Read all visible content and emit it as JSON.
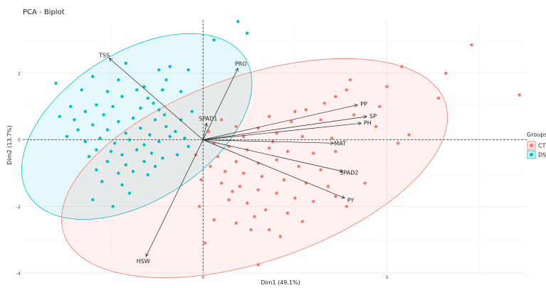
{
  "chart_data": {
    "type": "scatter",
    "title": "PCA - Biplot",
    "xlabel": "Dim1 (49.1%)",
    "ylabel": "Dim2 (13.7%)",
    "xlim": [
      -4.9,
      8.8
    ],
    "ylim": [
      -4.0,
      3.6
    ],
    "x_ticks": [
      0,
      5
    ],
    "y_ticks": [
      -4,
      -2,
      0,
      2
    ],
    "grid": true,
    "legend": {
      "title": "Groups",
      "position": "right",
      "items": [
        {
          "label": "CT",
          "color": "#F8766D"
        },
        {
          "label": "DS",
          "color": "#00BFC4"
        }
      ]
    },
    "ellipses": [
      {
        "group": "DS",
        "center": [
          -1.8,
          0.4
        ],
        "semi_major": 3.6,
        "semi_minor": 2.15,
        "angle_deg": 38,
        "color": "#00BFC4"
      },
      {
        "group": "CT",
        "center": [
          1.4,
          -0.85
        ],
        "semi_major": 5.55,
        "semi_minor": 2.75,
        "angle_deg": 22,
        "color": "#F8766D"
      }
    ],
    "variables": [
      {
        "name": "TSS",
        "x": -2.55,
        "y": 2.45
      },
      {
        "name": "PRO",
        "x": 0.95,
        "y": 2.15
      },
      {
        "name": "SPAD1",
        "x": 0.1,
        "y": 0.5
      },
      {
        "name": "PP",
        "x": 4.2,
        "y": 1.05
      },
      {
        "name": "SP",
        "x": 4.45,
        "y": 0.7
      },
      {
        "name": "PH",
        "x": 4.3,
        "y": 0.5
      },
      {
        "name": "MAT",
        "x": 3.55,
        "y": -0.1
      },
      {
        "name": "SPAD2",
        "x": 3.8,
        "y": -0.95
      },
      {
        "name": "PY",
        "x": 3.85,
        "y": -1.75
      },
      {
        "name": "HSW",
        "x": -1.55,
        "y": -3.5
      }
    ],
    "series": [
      {
        "name": "DS",
        "color": "#00BFC4",
        "points": [
          [
            0.95,
            3.55
          ],
          [
            1.2,
            3.2
          ],
          [
            0.3,
            3.0
          ],
          [
            -2.1,
            2.3
          ],
          [
            -1.2,
            2.1
          ],
          [
            -0.9,
            2.2
          ],
          [
            -0.4,
            2.1
          ],
          [
            -4.0,
            1.7
          ],
          [
            -3.0,
            1.9
          ],
          [
            -2.3,
            1.8
          ],
          [
            -1.6,
            1.6
          ],
          [
            -1.0,
            1.8
          ],
          [
            -1.8,
            1.5
          ],
          [
            -2.6,
            1.45
          ],
          [
            -3.3,
            1.5
          ],
          [
            -1.1,
            1.5
          ],
          [
            -0.6,
            1.45
          ],
          [
            -2.2,
            1.3
          ],
          [
            -1.5,
            1.25
          ],
          [
            -1.35,
            1.1
          ],
          [
            -3.6,
            1.0
          ],
          [
            -2.9,
            1.05
          ],
          [
            -2.45,
            1.0
          ],
          [
            -1.7,
            0.95
          ],
          [
            -1.2,
            0.9
          ],
          [
            -3.2,
            0.85
          ],
          [
            -0.3,
            0.85
          ],
          [
            -3.9,
            0.7
          ],
          [
            -3.5,
            0.6
          ],
          [
            -2.7,
            0.75
          ],
          [
            -2.3,
            0.55
          ],
          [
            -1.9,
            0.65
          ],
          [
            -1.3,
            0.6
          ],
          [
            -1.05,
            0.75
          ],
          [
            -0.6,
            0.6
          ],
          [
            -3.4,
            0.3
          ],
          [
            -3.0,
            0.45
          ],
          [
            -2.6,
            0.3
          ],
          [
            -2.1,
            0.2
          ],
          [
            -1.7,
            0.35
          ],
          [
            -1.45,
            0.15
          ],
          [
            -1.0,
            0.4
          ],
          [
            -0.75,
            0.25
          ],
          [
            -0.5,
            0.05
          ],
          [
            -3.7,
            0.1
          ],
          [
            -3.2,
            -0.05
          ],
          [
            -2.8,
            0.05
          ],
          [
            -2.4,
            -0.1
          ],
          [
            -2.0,
            0.0
          ],
          [
            -1.6,
            -0.15
          ],
          [
            -1.2,
            -0.05
          ],
          [
            -0.9,
            0.1
          ],
          [
            -0.4,
            -0.2
          ],
          [
            -2.9,
            -0.3
          ],
          [
            -2.5,
            -0.35
          ],
          [
            -2.2,
            -0.45
          ],
          [
            -1.8,
            -0.3
          ],
          [
            -1.4,
            -0.4
          ],
          [
            -1.1,
            -0.55
          ],
          [
            -0.7,
            -0.45
          ],
          [
            -3.1,
            -0.5
          ],
          [
            -2.6,
            -0.65
          ],
          [
            -2.1,
            -0.75
          ],
          [
            -1.6,
            -0.65
          ],
          [
            -1.3,
            -0.8
          ],
          [
            -2.9,
            -0.9
          ],
          [
            -2.3,
            -1.0
          ],
          [
            -1.9,
            -0.95
          ],
          [
            -1.5,
            -1.05
          ],
          [
            -2.75,
            -1.25
          ],
          [
            -2.2,
            -1.35
          ],
          [
            -3.0,
            -1.8
          ],
          [
            -2.45,
            -2.0
          ],
          [
            -2.0,
            -1.6
          ]
        ]
      },
      {
        "name": "CT",
        "color": "#F8766D",
        "points": [
          [
            7.3,
            2.85
          ],
          [
            5.4,
            2.2
          ],
          [
            6.6,
            2.0
          ],
          [
            8.6,
            1.35
          ],
          [
            6.4,
            1.25
          ],
          [
            5.0,
            1.6
          ],
          [
            4.0,
            1.8
          ],
          [
            3.9,
            1.5
          ],
          [
            3.6,
            1.3
          ],
          [
            4.8,
            1.0
          ],
          [
            3.3,
            1.1
          ],
          [
            2.8,
            0.9
          ],
          [
            3.2,
            0.6
          ],
          [
            2.4,
            0.55
          ],
          [
            1.8,
            0.7
          ],
          [
            4.7,
            0.4
          ],
          [
            5.6,
            0.15
          ],
          [
            5.3,
            -0.1
          ],
          [
            1.5,
            0.35
          ],
          [
            2.0,
            0.2
          ],
          [
            2.7,
            0.1
          ],
          [
            3.5,
            0.05
          ],
          [
            1.1,
            0.1
          ],
          [
            0.5,
            0.6
          ],
          [
            0.9,
            0.4
          ],
          [
            0.3,
            -0.1
          ],
          [
            0.7,
            -0.2
          ],
          [
            1.2,
            -0.3
          ],
          [
            1.8,
            -0.25
          ],
          [
            2.3,
            -0.35
          ],
          [
            3.0,
            -0.4
          ],
          [
            3.6,
            -0.35
          ],
          [
            0.4,
            -0.5
          ],
          [
            0.9,
            -0.65
          ],
          [
            1.5,
            -0.7
          ],
          [
            2.0,
            -0.6
          ],
          [
            2.6,
            -0.8
          ],
          [
            3.2,
            -0.9
          ],
          [
            0.6,
            -0.95
          ],
          [
            1.1,
            -1.0
          ],
          [
            1.6,
            -1.1
          ],
          [
            2.2,
            -1.2
          ],
          [
            2.8,
            -1.3
          ],
          [
            3.4,
            -1.4
          ],
          [
            0.5,
            -1.3
          ],
          [
            1.0,
            -1.4
          ],
          [
            1.5,
            -1.5
          ],
          [
            2.0,
            -1.6
          ],
          [
            2.5,
            -1.75
          ],
          [
            3.0,
            -1.85
          ],
          [
            3.6,
            -1.7
          ],
          [
            0.7,
            -1.8
          ],
          [
            1.2,
            -1.9
          ],
          [
            1.7,
            -2.1
          ],
          [
            2.3,
            -2.2
          ],
          [
            0.3,
            -2.4
          ],
          [
            0.9,
            -2.5
          ],
          [
            1.4,
            -2.3
          ],
          [
            -0.1,
            -2.0
          ],
          [
            -0.05,
            -1.2
          ],
          [
            0.2,
            -0.8
          ],
          [
            -0.2,
            -0.45
          ],
          [
            0.05,
            -3.1
          ],
          [
            1.5,
            -3.75
          ],
          [
            1.8,
            -2.7
          ],
          [
            2.7,
            -2.45
          ],
          [
            3.9,
            -2.0
          ],
          [
            4.4,
            -1.3
          ],
          [
            1.9,
            -0.05
          ],
          [
            0.15,
            0.25
          ],
          [
            4.1,
            0.75
          ],
          [
            2.5,
            0.85
          ],
          [
            0.8,
            -1.55
          ],
          [
            1.3,
            -2.7
          ],
          [
            2.1,
            -2.9
          ]
        ]
      }
    ]
  }
}
